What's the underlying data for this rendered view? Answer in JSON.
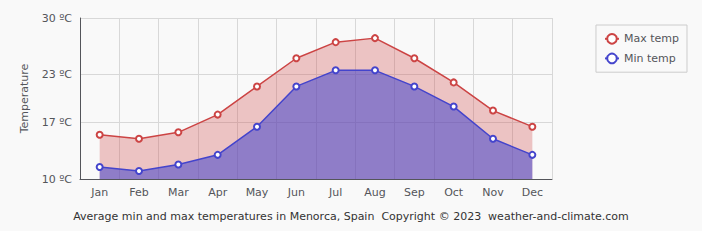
{
  "chart_data": {
    "type": "area",
    "title": "Average min and max temperatures in Menorca, Spain  Copyright © 2023  weather-and-climate.com",
    "y_label": "Temperature",
    "categories": [
      "Jan",
      "Feb",
      "Mar",
      "Apr",
      "May",
      "Jun",
      "Jul",
      "Aug",
      "Sep",
      "Oct",
      "Nov",
      "Dec"
    ],
    "series": [
      {
        "name": "Max temp",
        "color": "#cc4444",
        "marker": "circle",
        "values": [
          15.5,
          15.0,
          15.8,
          18.0,
          21.5,
          25.0,
          27.0,
          27.5,
          25.0,
          22.0,
          18.5,
          16.5
        ]
      },
      {
        "name": "Min temp",
        "color": "#4444cc",
        "marker": "circle",
        "values": [
          11.5,
          11.0,
          11.8,
          13.0,
          16.5,
          21.5,
          23.5,
          23.5,
          21.5,
          19.0,
          15.0,
          13.0
        ]
      }
    ],
    "ylim": [
      10,
      30
    ],
    "yticks": [
      {
        "value": 10,
        "label": "10 ºC"
      },
      {
        "value": 17,
        "label": "17 ºC"
      },
      {
        "value": 23,
        "label": "23 ºC"
      },
      {
        "value": 30,
        "label": "30 ºC"
      }
    ],
    "grid": true,
    "legend": "upper right"
  }
}
